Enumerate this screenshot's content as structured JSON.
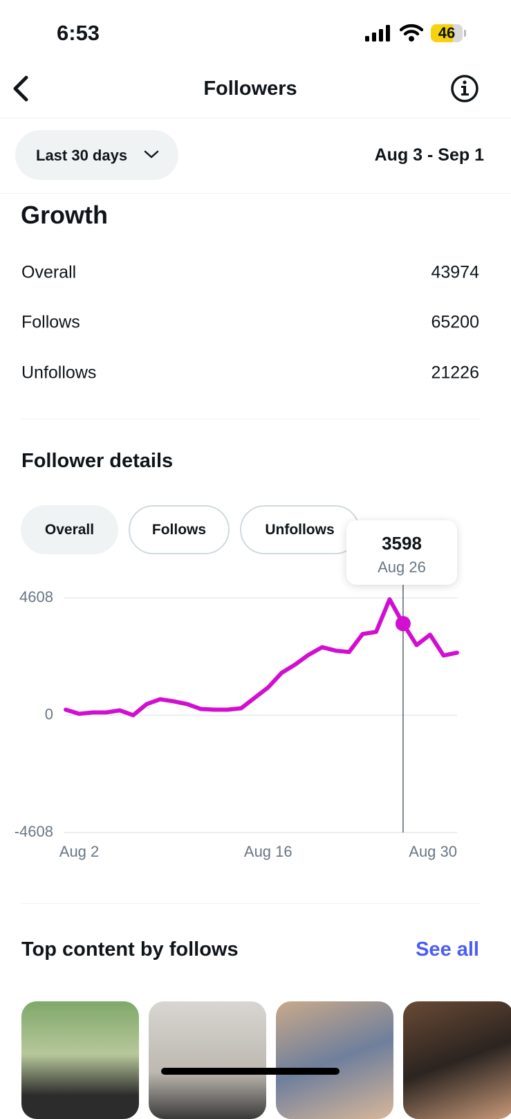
{
  "status_bar": {
    "time": "6:53",
    "battery": "46"
  },
  "header": {
    "title": "Followers"
  },
  "filter": {
    "range": "Last 30 days",
    "dates": "Aug 3 - Sep 1"
  },
  "growth": {
    "title": "Growth",
    "rows": [
      [
        "Overall",
        "43974"
      ],
      [
        "Follows",
        "65200"
      ],
      [
        "Unfollows",
        "21226"
      ]
    ]
  },
  "details": {
    "title": "Follower details",
    "tabs": [
      "Overall",
      "Follows",
      "Unfollows"
    ]
  },
  "chart_data": {
    "type": "line",
    "categories": [
      null,
      "Aug 2",
      null,
      null,
      null,
      null,
      null,
      null,
      null,
      null,
      null,
      null,
      null,
      null,
      null,
      "Aug 16",
      null,
      null,
      null,
      null,
      null,
      null,
      null,
      null,
      null,
      "Aug 26",
      null,
      null,
      null,
      "Aug 30"
    ],
    "series": [
      {
        "name": "Overall",
        "color": "#d20fd0",
        "values": [
          218,
          55,
          109,
          109,
          191,
          0,
          436,
          627,
          545,
          436,
          245,
          218,
          218,
          273,
          682,
          1091,
          1663,
          1991,
          2373,
          2672,
          2536,
          2482,
          3190,
          3272,
          4554,
          3598,
          2754,
          3163,
          2346,
          2454
        ]
      }
    ],
    "highlight": 25,
    "ylim": [
      -4608,
      4608
    ],
    "yticks": [
      -4608,
      0,
      4608
    ],
    "grid": true
  },
  "top_content": {
    "title": "Top content by follows",
    "link": "See all"
  }
}
